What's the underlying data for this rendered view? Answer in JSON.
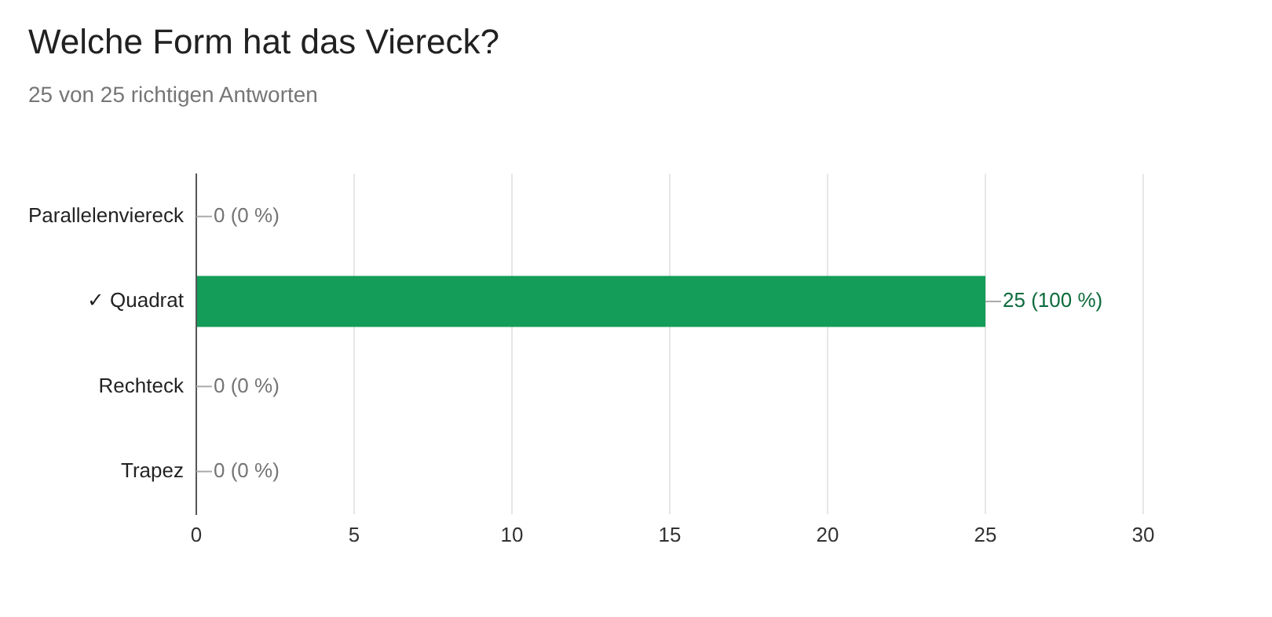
{
  "chart_data": {
    "type": "bar",
    "orientation": "horizontal",
    "title": "Welche Form hat das Viereck?",
    "subtitle": "25 von 25 richtigen Antworten",
    "categories": [
      "Parallelenviereck",
      "✓ Quadrat",
      "Rechteck",
      "Trapez"
    ],
    "values": [
      0,
      25,
      0,
      0
    ],
    "color": "#139d58",
    "value_labels": [
      "0 (0 %)",
      "25 (100 %)",
      "0 (0 %)",
      "0 (0 %)"
    ],
    "xlim": [
      0,
      30
    ],
    "xticks": [
      0,
      5,
      10,
      15,
      20,
      25,
      30
    ],
    "grid": "x",
    "legend": false
  }
}
